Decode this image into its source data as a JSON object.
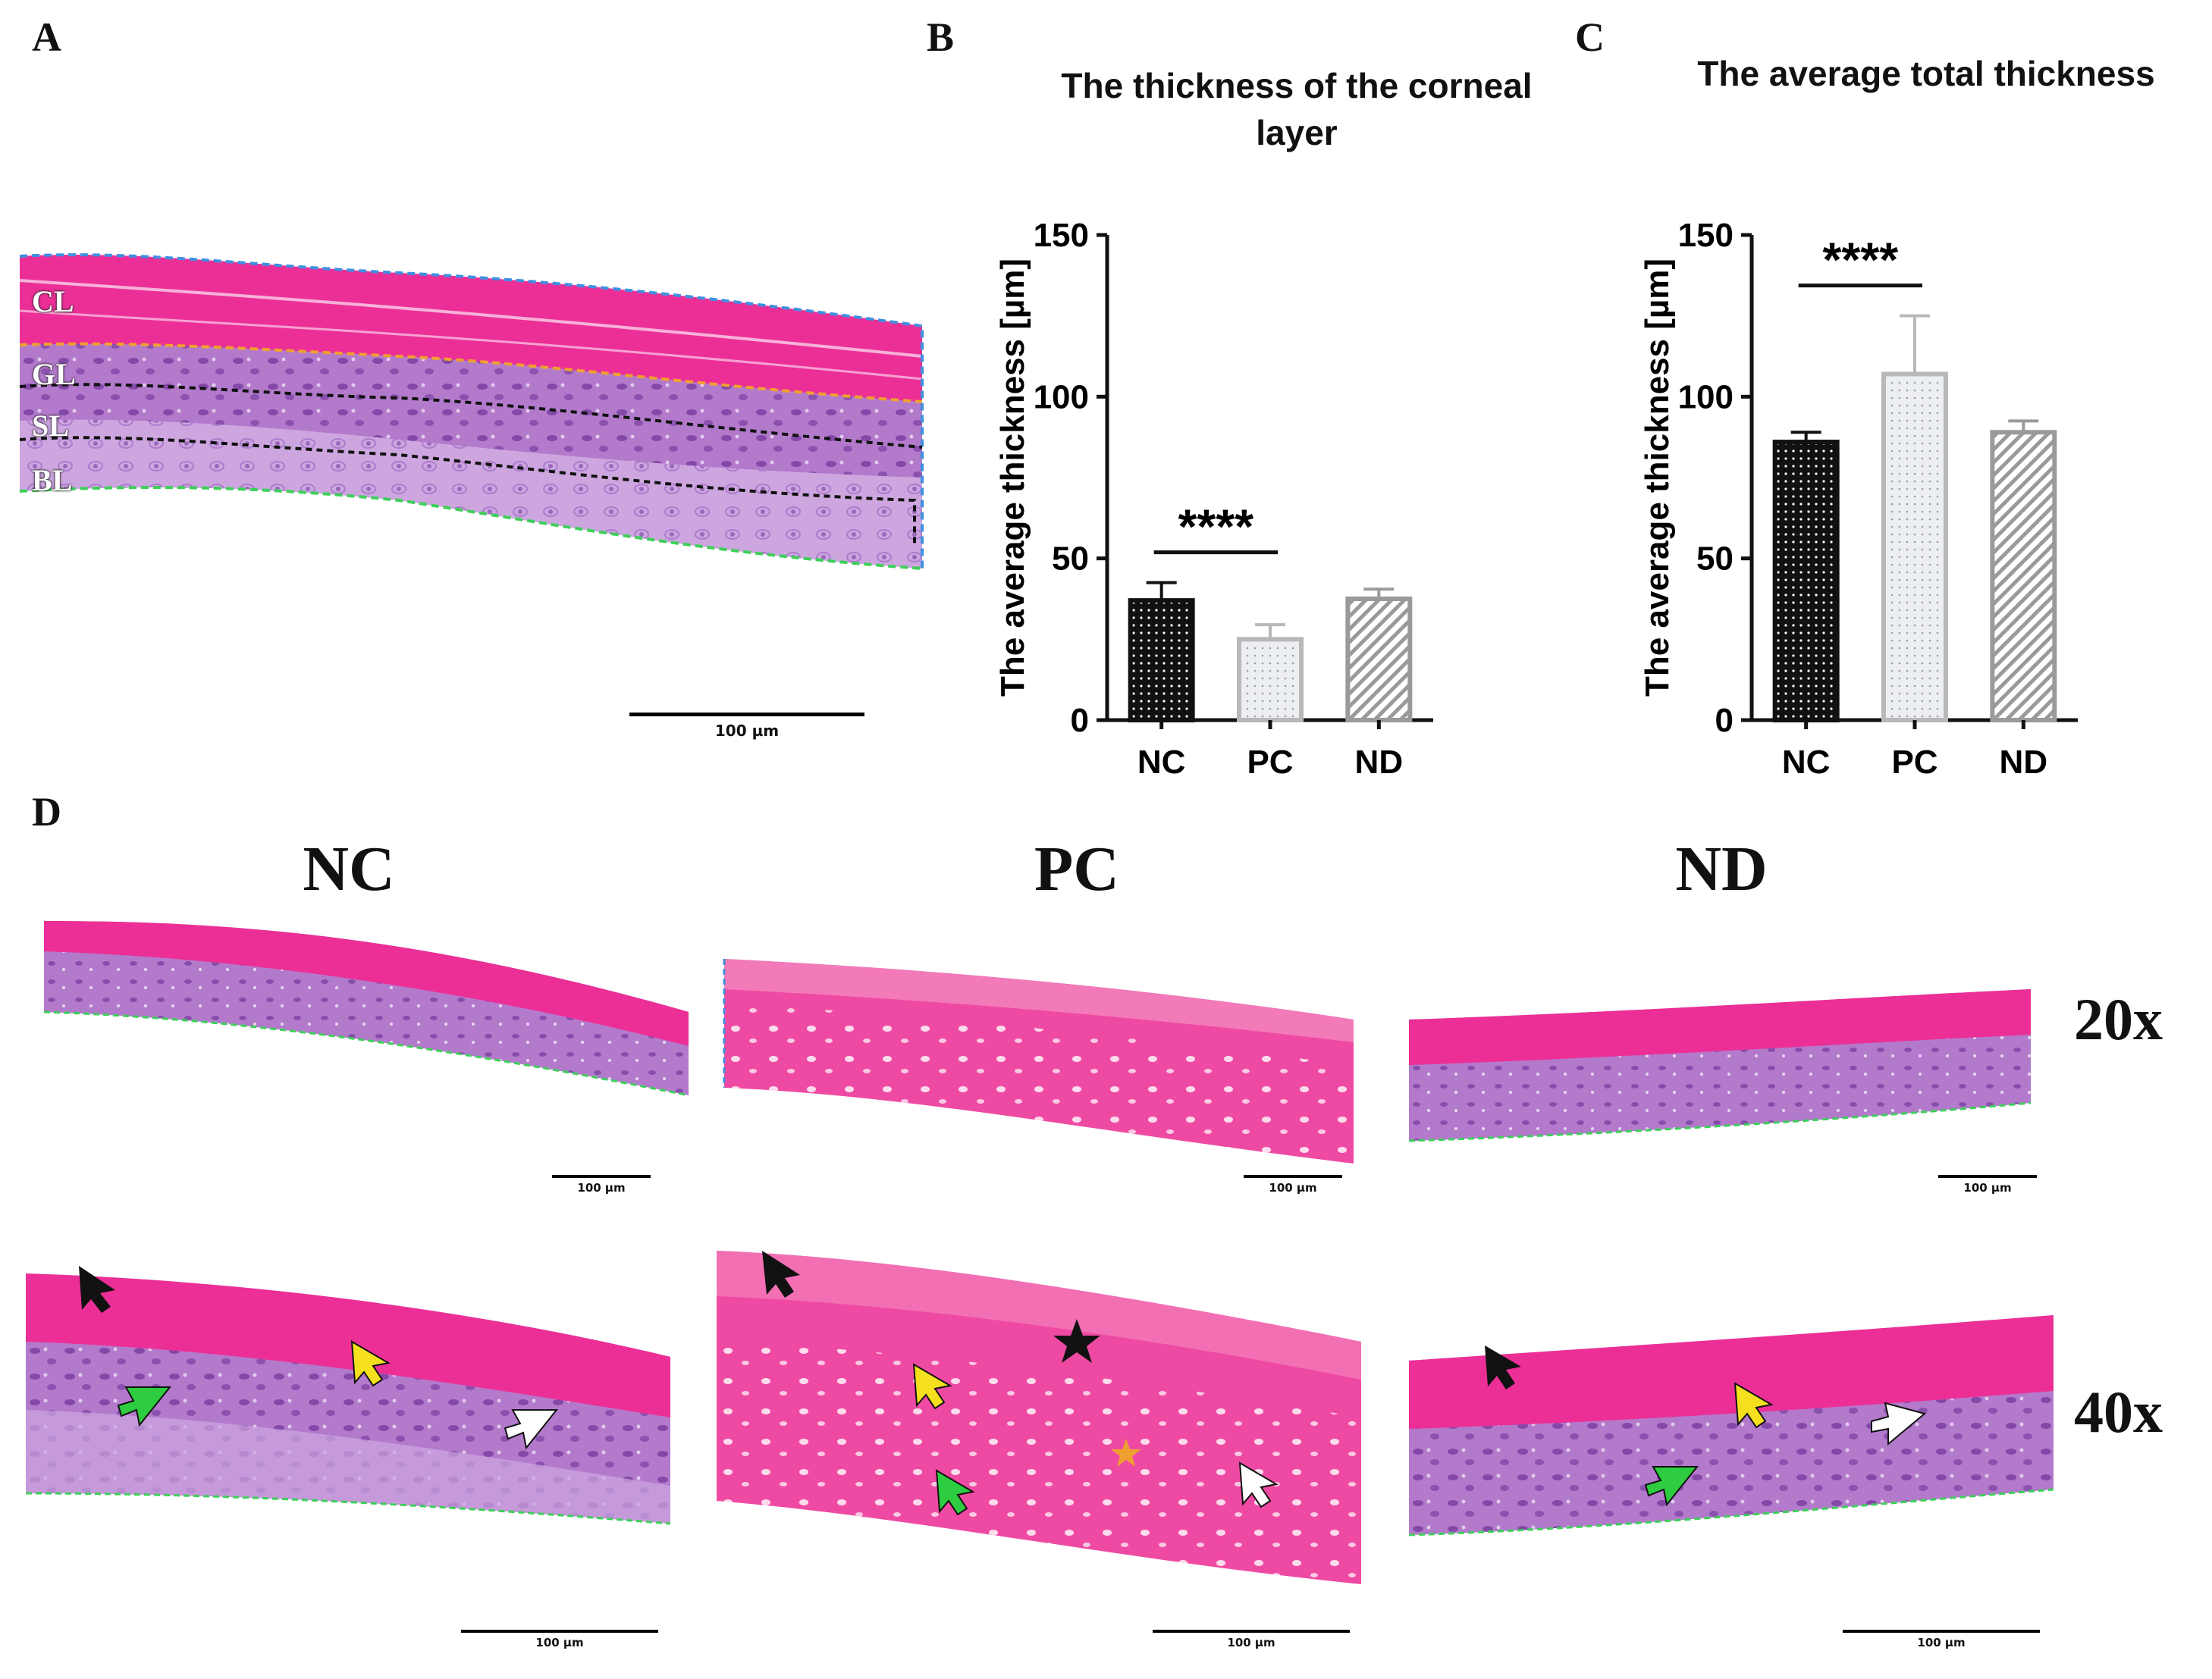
{
  "panel_labels": {
    "a": "A",
    "b": "B",
    "c": "C",
    "d": "D"
  },
  "panel_a": {
    "layers": [
      "CL",
      "GL",
      "SL",
      "BL"
    ],
    "scale_label": "100 µm"
  },
  "colors": {
    "cornea": "#ec2f97",
    "epidermis": "#b879cf",
    "basal": "#c9a2dd",
    "nuclei": "#5b1f8a",
    "border_blue": "#3f8fe0",
    "border_orange": "#f0a030",
    "border_green": "#3ecf5a",
    "bar_nc": "#111111",
    "bar_pc": "#b8b8b8",
    "bar_nd": "#9a9a9a"
  },
  "chart_data": [
    {
      "type": "bar",
      "panel": "B",
      "title": "The thickness of the corneal layer",
      "title_lines": [
        "The thickness of the corneal",
        "layer"
      ],
      "ylabel": "The average thickness [µm]",
      "xlabel": "",
      "categories": [
        "NC",
        "PC",
        "ND"
      ],
      "values": [
        37,
        25,
        37.5
      ],
      "errors": [
        5.5,
        4.5,
        3
      ],
      "patterns": [
        "dots-dark",
        "dots-light",
        "hatch"
      ],
      "ylim": [
        0,
        150
      ],
      "yticks": [
        0,
        50,
        100,
        150
      ],
      "significance": {
        "from": "NC",
        "to": "PC",
        "label": "****"
      }
    },
    {
      "type": "bar",
      "panel": "C",
      "title": "The average total thickness",
      "title_lines": [
        "The average total thickness"
      ],
      "ylabel": "The average thickness [µm]",
      "xlabel": "",
      "categories": [
        "NC",
        "PC",
        "ND"
      ],
      "values": [
        86,
        107,
        89
      ],
      "errors": [
        3,
        18,
        3.5
      ],
      "patterns": [
        "dots-dark",
        "dots-light",
        "hatch"
      ],
      "ylim": [
        0,
        150
      ],
      "yticks": [
        0,
        50,
        100,
        150
      ],
      "significance": {
        "from": "NC",
        "to": "PC",
        "label": "****"
      }
    }
  ],
  "panel_d": {
    "groups": [
      "NC",
      "PC",
      "ND"
    ],
    "magnifications": [
      "20x",
      "40x"
    ],
    "scale_label": "100 µm"
  }
}
